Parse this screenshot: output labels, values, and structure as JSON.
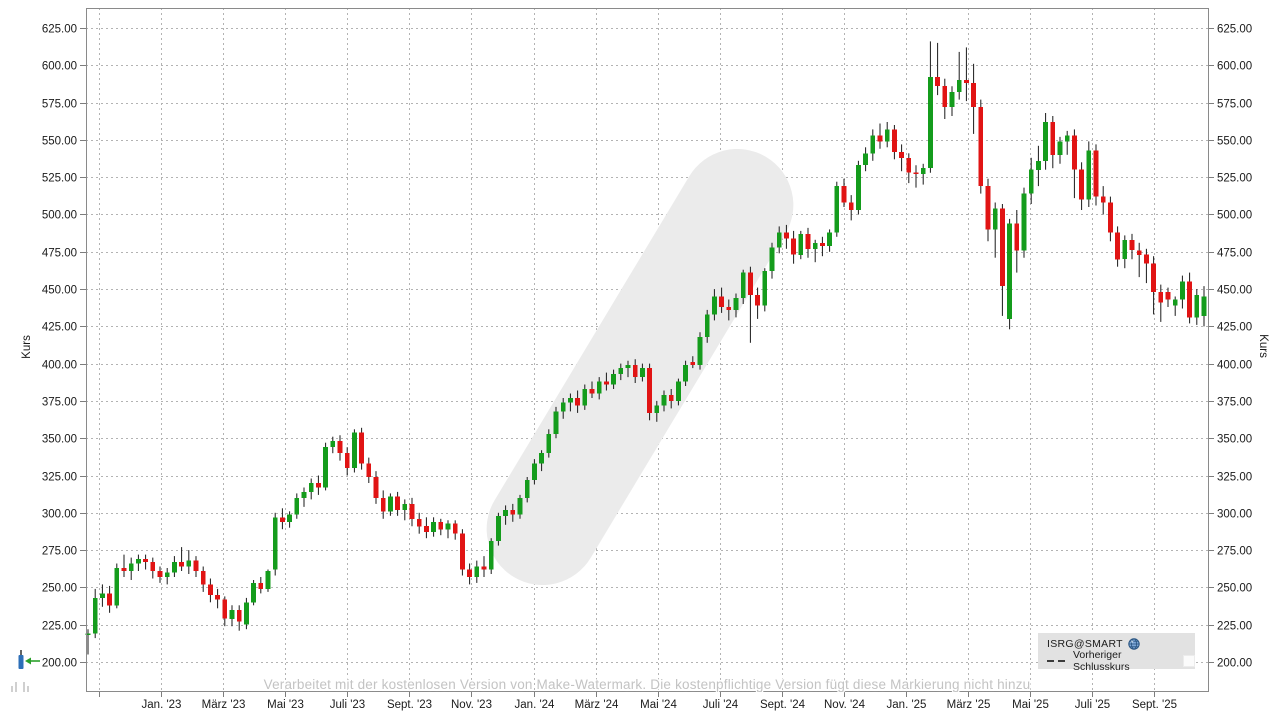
{
  "chart_data": {
    "type": "candlestick",
    "symbol": "ISRG@SMART",
    "ylabel_left": "Kurs",
    "ylabel_right": "Kurs",
    "y_axis_range": [
      200,
      625
    ],
    "y_tick_step": 25,
    "grid_style": "dashed",
    "legend_position": "bottom-right",
    "y_tick_labels": [
      "625.00",
      "600.00",
      "575.00",
      "550.00",
      "525.00",
      "500.00",
      "475.00",
      "450.00",
      "425.00",
      "400.00",
      "375.00",
      "350.00",
      "325.00",
      "300.00",
      "275.00",
      "250.00",
      "225.00",
      "200.00"
    ],
    "x_tick_labels": [
      "Jan. '23",
      "März '23",
      "Mai '23",
      "Juli '23",
      "Sept. '23",
      "Nov. '23",
      "Jan. '24",
      "März '24",
      "Mai '24",
      "Juli '24",
      "Sept. '24",
      "Nov. '24",
      "Jan. '25",
      "März '25",
      "Mai '25",
      "Juli '25",
      "Sept. '25"
    ],
    "colors": {
      "up": "#149c1c",
      "down": "#e11414",
      "wick": "#1a1a1a",
      "grid": "#b3b3b3",
      "watermark_logo": "#ebebeb",
      "legend_bg": "#e2e2e2"
    },
    "candles_ohlc": [
      [
        218,
        222,
        205,
        219
      ],
      [
        219,
        249,
        216,
        243
      ],
      [
        243,
        252,
        237,
        246
      ],
      [
        246,
        251,
        233,
        238
      ],
      [
        238,
        266,
        236,
        263
      ],
      [
        263,
        272,
        257,
        261
      ],
      [
        261,
        270,
        255,
        266
      ],
      [
        266,
        272,
        261,
        269
      ],
      [
        269,
        272,
        262,
        267
      ],
      [
        267,
        270,
        256,
        261
      ],
      [
        261,
        264,
        253,
        257
      ],
      [
        257,
        263,
        252,
        260
      ],
      [
        260,
        271,
        257,
        267
      ],
      [
        267,
        277,
        261,
        264
      ],
      [
        264,
        275,
        259,
        268
      ],
      [
        268,
        271,
        257,
        261
      ],
      [
        261,
        264,
        247,
        252
      ],
      [
        252,
        256,
        240,
        245
      ],
      [
        245,
        249,
        236,
        242
      ],
      [
        242,
        244,
        224,
        229
      ],
      [
        229,
        238,
        224,
        235
      ],
      [
        235,
        238,
        221,
        227
      ],
      [
        225,
        243,
        222,
        240
      ],
      [
        240,
        255,
        238,
        253
      ],
      [
        253,
        257,
        246,
        249
      ],
      [
        249,
        262,
        247,
        261
      ],
      [
        262,
        300,
        258,
        297
      ],
      [
        297,
        303,
        289,
        294
      ],
      [
        294,
        301,
        290,
        299
      ],
      [
        299,
        313,
        296,
        310
      ],
      [
        310,
        317,
        304,
        314
      ],
      [
        314,
        323,
        309,
        320
      ],
      [
        320,
        325,
        312,
        317
      ],
      [
        317,
        347,
        315,
        344
      ],
      [
        344,
        351,
        340,
        348
      ],
      [
        348,
        352,
        335,
        340
      ],
      [
        340,
        344,
        325,
        330
      ],
      [
        330,
        356,
        327,
        354
      ],
      [
        354,
        357,
        329,
        333
      ],
      [
        333,
        337,
        320,
        324
      ],
      [
        324,
        328,
        306,
        310
      ],
      [
        310,
        315,
        296,
        301
      ],
      [
        301,
        313,
        298,
        311
      ],
      [
        311,
        314,
        298,
        302
      ],
      [
        302,
        309,
        295,
        306
      ],
      [
        306,
        310,
        291,
        296
      ],
      [
        296,
        300,
        286,
        291
      ],
      [
        291,
        297,
        283,
        287
      ],
      [
        287,
        297,
        284,
        294
      ],
      [
        294,
        296,
        285,
        289
      ],
      [
        289,
        295,
        283,
        293
      ],
      [
        293,
        295,
        282,
        286
      ],
      [
        286,
        289,
        258,
        262
      ],
      [
        262,
        266,
        252,
        257
      ],
      [
        257,
        268,
        253,
        264
      ],
      [
        264,
        271,
        257,
        262
      ],
      [
        262,
        283,
        259,
        281
      ],
      [
        281,
        300,
        278,
        298
      ],
      [
        298,
        305,
        292,
        302
      ],
      [
        302,
        306,
        294,
        299
      ],
      [
        299,
        312,
        296,
        310
      ],
      [
        310,
        324,
        307,
        322
      ],
      [
        322,
        336,
        319,
        333
      ],
      [
        333,
        342,
        328,
        340
      ],
      [
        340,
        356,
        337,
        353
      ],
      [
        353,
        371,
        350,
        368
      ],
      [
        368,
        377,
        363,
        374
      ],
      [
        374,
        380,
        368,
        377
      ],
      [
        377,
        382,
        367,
        372
      ],
      [
        372,
        386,
        369,
        383
      ],
      [
        383,
        388,
        377,
        380
      ],
      [
        380,
        391,
        376,
        388
      ],
      [
        388,
        394,
        382,
        386
      ],
      [
        386,
        396,
        383,
        393
      ],
      [
        393,
        400,
        389,
        397
      ],
      [
        397,
        402,
        391,
        399
      ],
      [
        399,
        403,
        387,
        391
      ],
      [
        391,
        400,
        388,
        397
      ],
      [
        397,
        400,
        362,
        367
      ],
      [
        367,
        375,
        361,
        372
      ],
      [
        372,
        382,
        368,
        379
      ],
      [
        379,
        383,
        370,
        375
      ],
      [
        375,
        390,
        372,
        388
      ],
      [
        388,
        402,
        385,
        399
      ],
      [
        401,
        405,
        397,
        399
      ],
      [
        399,
        421,
        396,
        418
      ],
      [
        418,
        436,
        414,
        433
      ],
      [
        433,
        450,
        429,
        445
      ],
      [
        445,
        451,
        434,
        438
      ],
      [
        438,
        443,
        429,
        436
      ],
      [
        436,
        447,
        431,
        444
      ],
      [
        444,
        463,
        440,
        461
      ],
      [
        461,
        465,
        414,
        446
      ],
      [
        446,
        451,
        430,
        439
      ],
      [
        439,
        464,
        435,
        462
      ],
      [
        462,
        481,
        457,
        478
      ],
      [
        478,
        492,
        474,
        488
      ],
      [
        488,
        493,
        477,
        484
      ],
      [
        484,
        489,
        467,
        473
      ],
      [
        473,
        489,
        470,
        487
      ],
      [
        487,
        491,
        471,
        477
      ],
      [
        477,
        483,
        468,
        481
      ],
      [
        481,
        485,
        472,
        479
      ],
      [
        479,
        490,
        475,
        488
      ],
      [
        488,
        522,
        485,
        519
      ],
      [
        519,
        524,
        505,
        508
      ],
      [
        508,
        513,
        496,
        503
      ],
      [
        503,
        536,
        500,
        533
      ],
      [
        533,
        545,
        529,
        541
      ],
      [
        541,
        557,
        536,
        553
      ],
      [
        553,
        561,
        544,
        549
      ],
      [
        549,
        562,
        545,
        557
      ],
      [
        557,
        560,
        537,
        542
      ],
      [
        542,
        547,
        529,
        538
      ],
      [
        538,
        541,
        521,
        528
      ],
      [
        528,
        533,
        518,
        527
      ],
      [
        527,
        534,
        520,
        531
      ],
      [
        531,
        616,
        528,
        592
      ],
      [
        592,
        615,
        580,
        586
      ],
      [
        586,
        591,
        564,
        572
      ],
      [
        572,
        586,
        566,
        582
      ],
      [
        582,
        609,
        577,
        590
      ],
      [
        590,
        612,
        576,
        588
      ],
      [
        588,
        601,
        554,
        572
      ],
      [
        572,
        577,
        514,
        519
      ],
      [
        519,
        524,
        482,
        490
      ],
      [
        490,
        508,
        471,
        504
      ],
      [
        504,
        507,
        432,
        452
      ],
      [
        430,
        497,
        423,
        494
      ],
      [
        494,
        503,
        461,
        476
      ],
      [
        476,
        518,
        471,
        514
      ],
      [
        514,
        538,
        507,
        530
      ],
      [
        530,
        546,
        519,
        536
      ],
      [
        536,
        568,
        530,
        562
      ],
      [
        562,
        566,
        531,
        540
      ],
      [
        540,
        552,
        534,
        549
      ],
      [
        549,
        556,
        540,
        553
      ],
      [
        553,
        557,
        511,
        530
      ],
      [
        530,
        535,
        503,
        510
      ],
      [
        510,
        549,
        505,
        543
      ],
      [
        543,
        547,
        506,
        512
      ],
      [
        512,
        519,
        500,
        508
      ],
      [
        508,
        512,
        482,
        488
      ],
      [
        488,
        492,
        465,
        470
      ],
      [
        470,
        486,
        464,
        483
      ],
      [
        483,
        487,
        470,
        476
      ],
      [
        476,
        481,
        458,
        473
      ],
      [
        473,
        477,
        454,
        467
      ],
      [
        467,
        472,
        433,
        448
      ],
      [
        448,
        453,
        428,
        441
      ],
      [
        448,
        451,
        438,
        443
      ],
      [
        439,
        445,
        432,
        443
      ],
      [
        443,
        459,
        437,
        455
      ],
      [
        455,
        461,
        427,
        431
      ],
      [
        431,
        450,
        426,
        446
      ],
      [
        432,
        452,
        425,
        445
      ]
    ]
  },
  "legend": {
    "symbol": "ISRG@SMART",
    "prev_close_label": "Vorheriger Schlusskurs"
  },
  "footer_watermark": {
    "text": "Verarbeitet mit der kostenlosen Version von Make-Watermark. Die kostenpflichtige Version fügt diese Markierung nicht hinzu"
  }
}
